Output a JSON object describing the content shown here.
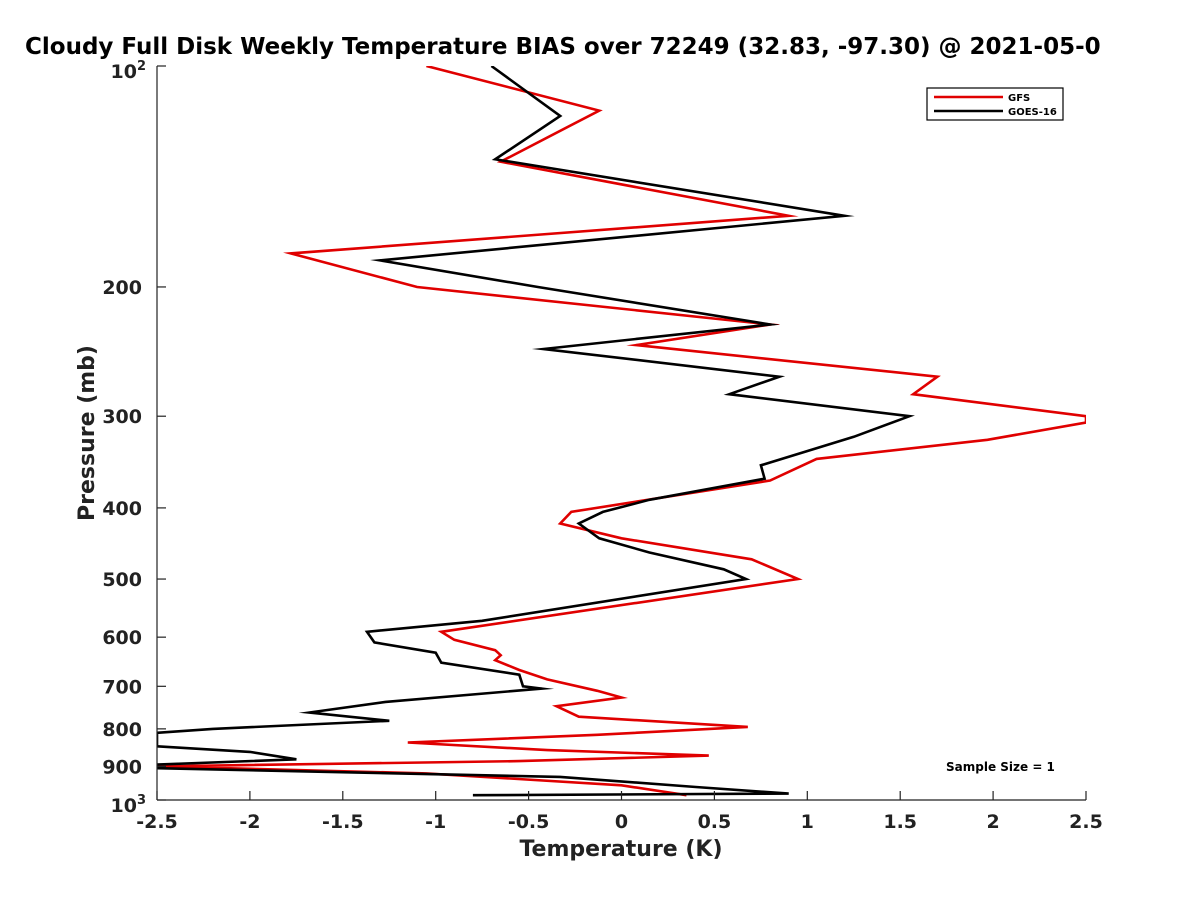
{
  "chart_data": {
    "type": "line",
    "title": "Cloudy Full Disk Weekly Temperature BIAS over 72249 (32.83, -97.30) @ 2021-05-0",
    "xlabel": "Temperature (K)",
    "ylabel": "Pressure (mb)",
    "xlim": [
      -2.5,
      2.5
    ],
    "ylim": [
      100,
      1000
    ],
    "y_scale": "log",
    "y_reversed": true,
    "x_ticks": [
      "-2.5",
      "-2",
      "-1.5",
      "-1",
      "-0.5",
      "0",
      "0.5",
      "1",
      "1.5",
      "2",
      "2.5"
    ],
    "y_ticks": [
      {
        "value": 100,
        "base": "10",
        "exp": "2"
      },
      {
        "value": 200,
        "label": "200"
      },
      {
        "value": 300,
        "label": "300"
      },
      {
        "value": 400,
        "label": "400"
      },
      {
        "value": 500,
        "label": "500"
      },
      {
        "value": 600,
        "label": "600"
      },
      {
        "value": 700,
        "label": "700"
      },
      {
        "value": 800,
        "label": "800"
      },
      {
        "value": 900,
        "label": "900"
      },
      {
        "value": 1000,
        "base": "10",
        "exp": "3"
      }
    ],
    "grid": false,
    "legend_position": "top-right",
    "annotation": "Sample Size = 1",
    "series": [
      {
        "name": "GFS",
        "color": "#e00000",
        "points": [
          [
            -1.05,
            100
          ],
          [
            -0.12,
            115
          ],
          [
            -0.65,
            135
          ],
          [
            0.9,
            160
          ],
          [
            -1.78,
            180
          ],
          [
            -1.1,
            200
          ],
          [
            0.8,
            225
          ],
          [
            0.08,
            240
          ],
          [
            1.7,
            265
          ],
          [
            1.57,
            280
          ],
          [
            2.5,
            300
          ],
          [
            2.5,
            306
          ],
          [
            1.97,
            323
          ],
          [
            1.05,
            343
          ],
          [
            0.8,
            367
          ],
          [
            -0.27,
            405
          ],
          [
            -0.33,
            420
          ],
          [
            0.0,
            440
          ],
          [
            0.7,
            470
          ],
          [
            0.95,
            500
          ],
          [
            -0.97,
            590
          ],
          [
            -0.9,
            605
          ],
          [
            -0.68,
            625
          ],
          [
            -0.65,
            635
          ],
          [
            -0.68,
            645
          ],
          [
            -0.55,
            665
          ],
          [
            -0.4,
            685
          ],
          [
            -0.13,
            710
          ],
          [
            0.0,
            725
          ],
          [
            -0.35,
            745
          ],
          [
            -0.23,
            770
          ],
          [
            0.68,
            795
          ],
          [
            -0.13,
            815
          ],
          [
            -1.15,
            835
          ],
          [
            -0.4,
            855
          ],
          [
            0.47,
            870
          ],
          [
            -0.55,
            885
          ],
          [
            -2.5,
            900
          ],
          [
            -1.05,
            920
          ],
          [
            0.0,
            955
          ],
          [
            0.35,
            985
          ]
        ]
      },
      {
        "name": "GOES-16",
        "color": "#000000",
        "points": [
          [
            -0.7,
            100
          ],
          [
            -0.33,
            117
          ],
          [
            -0.68,
            134
          ],
          [
            1.2,
            160
          ],
          [
            -1.3,
            184
          ],
          [
            -0.45,
            200
          ],
          [
            0.8,
            225
          ],
          [
            -0.42,
            243
          ],
          [
            0.85,
            265
          ],
          [
            0.58,
            280
          ],
          [
            1.55,
            300
          ],
          [
            1.25,
            320
          ],
          [
            0.75,
            350
          ],
          [
            0.77,
            365
          ],
          [
            0.15,
            390
          ],
          [
            -0.1,
            405
          ],
          [
            -0.23,
            420
          ],
          [
            -0.12,
            440
          ],
          [
            0.15,
            460
          ],
          [
            0.55,
            485
          ],
          [
            0.67,
            500
          ],
          [
            -0.75,
            570
          ],
          [
            -1.37,
            590
          ],
          [
            -1.33,
            610
          ],
          [
            -1.0,
            630
          ],
          [
            -0.97,
            650
          ],
          [
            -0.55,
            675
          ],
          [
            -0.53,
            700
          ],
          [
            -0.43,
            705
          ],
          [
            -1.27,
            735
          ],
          [
            -1.68,
            760
          ],
          [
            -1.25,
            780
          ],
          [
            -2.2,
            800
          ],
          [
            -2.5,
            810
          ],
          [
            -2.5,
            845
          ],
          [
            -2.0,
            860
          ],
          [
            -1.75,
            880
          ],
          [
            -2.5,
            895
          ],
          [
            -2.5,
            905
          ],
          [
            -0.33,
            930
          ],
          [
            0.4,
            960
          ],
          [
            0.9,
            980
          ],
          [
            -0.8,
            985
          ]
        ]
      }
    ]
  }
}
